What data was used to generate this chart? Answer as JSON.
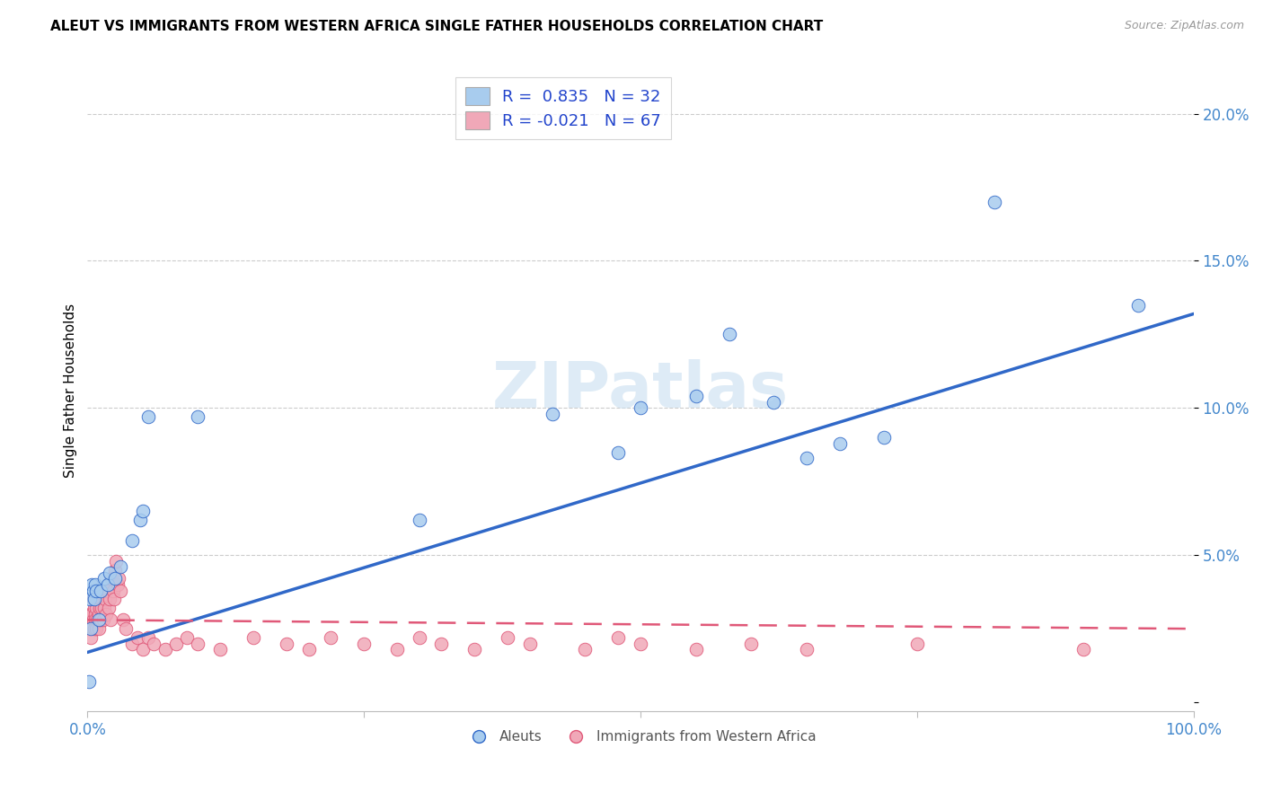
{
  "title": "ALEUT VS IMMIGRANTS FROM WESTERN AFRICA SINGLE FATHER HOUSEHOLDS CORRELATION CHART",
  "source": "Source: ZipAtlas.com",
  "ylabel": "Single Father Households",
  "xlim": [
    0.0,
    1.0
  ],
  "ylim": [
    -0.003,
    0.215
  ],
  "xticks": [
    0.0,
    0.25,
    0.5,
    0.75,
    1.0
  ],
  "yticks": [
    0.0,
    0.05,
    0.1,
    0.15,
    0.2
  ],
  "ytick_labels": [
    "",
    "5.0%",
    "10.0%",
    "15.0%",
    "20.0%"
  ],
  "xtick_labels": [
    "0.0%",
    "",
    "",
    "",
    "100.0%"
  ],
  "aleuts_R": 0.835,
  "aleuts_N": 32,
  "immigrants_R": -0.021,
  "immigrants_N": 67,
  "aleut_color": "#A8CCEE",
  "immigrant_color": "#F0A8B8",
  "aleut_line_color": "#3068C8",
  "immigrant_line_color": "#E05878",
  "watermark_color": "#C8DEF0",
  "aleuts_x": [
    0.001,
    0.002,
    0.003,
    0.004,
    0.005,
    0.006,
    0.007,
    0.008,
    0.01,
    0.012,
    0.015,
    0.018,
    0.02,
    0.025,
    0.03,
    0.04,
    0.048,
    0.05,
    0.055,
    0.1,
    0.3,
    0.42,
    0.48,
    0.5,
    0.55,
    0.58,
    0.62,
    0.65,
    0.68,
    0.72,
    0.82,
    0.95
  ],
  "aleuts_y": [
    0.007,
    0.035,
    0.025,
    0.04,
    0.038,
    0.035,
    0.04,
    0.038,
    0.028,
    0.038,
    0.042,
    0.04,
    0.044,
    0.042,
    0.046,
    0.055,
    0.062,
    0.065,
    0.097,
    0.097,
    0.062,
    0.098,
    0.085,
    0.1,
    0.104,
    0.125,
    0.102,
    0.083,
    0.088,
    0.09,
    0.17,
    0.135
  ],
  "immigrants_x": [
    0.001,
    0.002,
    0.003,
    0.004,
    0.005,
    0.005,
    0.006,
    0.006,
    0.007,
    0.007,
    0.008,
    0.008,
    0.009,
    0.01,
    0.01,
    0.011,
    0.012,
    0.012,
    0.013,
    0.014,
    0.015,
    0.015,
    0.016,
    0.017,
    0.018,
    0.019,
    0.02,
    0.021,
    0.022,
    0.023,
    0.024,
    0.025,
    0.026,
    0.027,
    0.028,
    0.03,
    0.032,
    0.035,
    0.04,
    0.045,
    0.05,
    0.055,
    0.06,
    0.07,
    0.08,
    0.09,
    0.1,
    0.12,
    0.15,
    0.18,
    0.2,
    0.22,
    0.25,
    0.28,
    0.3,
    0.32,
    0.35,
    0.38,
    0.4,
    0.45,
    0.48,
    0.5,
    0.55,
    0.6,
    0.65,
    0.75,
    0.9
  ],
  "immigrants_y": [
    0.025,
    0.03,
    0.022,
    0.03,
    0.035,
    0.028,
    0.025,
    0.032,
    0.03,
    0.028,
    0.025,
    0.032,
    0.028,
    0.03,
    0.025,
    0.032,
    0.028,
    0.035,
    0.032,
    0.028,
    0.038,
    0.032,
    0.035,
    0.03,
    0.038,
    0.032,
    0.035,
    0.028,
    0.042,
    0.038,
    0.035,
    0.045,
    0.048,
    0.04,
    0.042,
    0.038,
    0.028,
    0.025,
    0.02,
    0.022,
    0.018,
    0.022,
    0.02,
    0.018,
    0.02,
    0.022,
    0.02,
    0.018,
    0.022,
    0.02,
    0.018,
    0.022,
    0.02,
    0.018,
    0.022,
    0.02,
    0.018,
    0.022,
    0.02,
    0.018,
    0.022,
    0.02,
    0.018,
    0.02,
    0.018,
    0.02,
    0.018
  ],
  "aleut_line_x": [
    0.0,
    1.0
  ],
  "aleut_line_y": [
    0.017,
    0.132
  ],
  "immigrant_line_x": [
    0.0,
    1.0
  ],
  "immigrant_line_y": [
    0.028,
    0.025
  ]
}
